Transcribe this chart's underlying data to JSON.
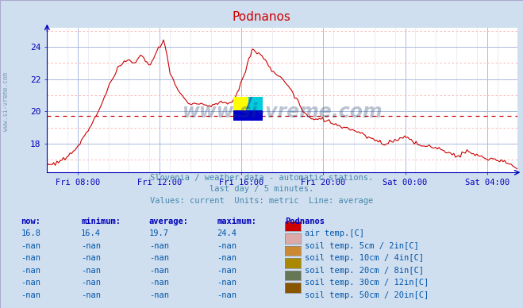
{
  "title": "Podnanos",
  "title_color": "#cc0000",
  "bg_color": "#d0dff0",
  "plot_bg_color": "#ffffff",
  "grid_major_color": "#aabbdd",
  "grid_minor_color": "#ffcccc",
  "axis_color": "#0000bb",
  "line_color": "#cc0000",
  "avg_value": 19.7,
  "ylim": [
    16.2,
    25.2
  ],
  "yticks": [
    18,
    20,
    22,
    24
  ],
  "watermark_text": "www.si-vreme.com",
  "watermark_color": "#1a3a6a",
  "watermark_alpha": 0.3,
  "subtitle1": "Slovenia / weather data - automatic stations.",
  "subtitle2": "last day / 5 minutes.",
  "subtitle3": "Values: current  Units: metric  Line: average",
  "subtitle_color": "#4488aa",
  "table_header": [
    "now:",
    "minimum:",
    "average:",
    "maximum:",
    "Podnanos"
  ],
  "table_header_color": "#0000bb",
  "table_rows": [
    [
      "16.8",
      "16.4",
      "19.7",
      "24.4",
      "#cc0000",
      "air temp.[C]"
    ],
    [
      "-nan",
      "-nan",
      "-nan",
      "-nan",
      "#ddaaaa",
      "soil temp. 5cm / 2in[C]"
    ],
    [
      "-nan",
      "-nan",
      "-nan",
      "-nan",
      "#cc8833",
      "soil temp. 10cm / 4in[C]"
    ],
    [
      "-nan",
      "-nan",
      "-nan",
      "-nan",
      "#aa8800",
      "soil temp. 20cm / 8in[C]"
    ],
    [
      "-nan",
      "-nan",
      "-nan",
      "-nan",
      "#667755",
      "soil temp. 30cm / 12in[C]"
    ],
    [
      "-nan",
      "-nan",
      "-nan",
      "-nan",
      "#885500",
      "soil temp. 50cm / 20in[C]"
    ]
  ],
  "table_color": "#0055aa",
  "xticklabels": [
    "Fri 08:00",
    "Fri 12:00",
    "Fri 16:00",
    "Fri 20:00",
    "Sat 00:00",
    "Sat 04:00"
  ],
  "side_text": "www.si-vreme.com",
  "side_text_color": "#6688aa"
}
